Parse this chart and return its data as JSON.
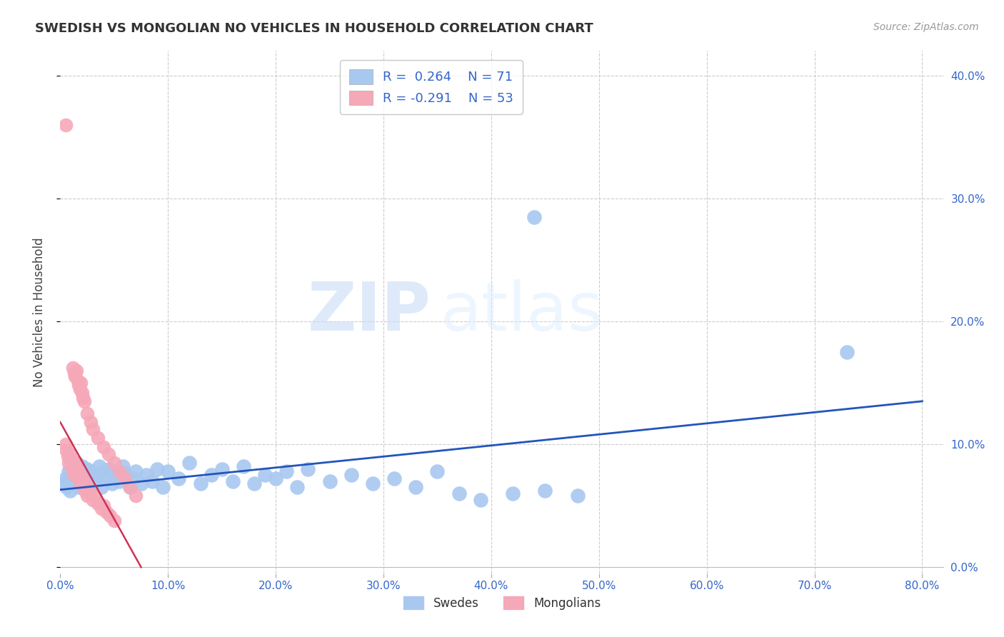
{
  "title": "SWEDISH VS MONGOLIAN NO VEHICLES IN HOUSEHOLD CORRELATION CHART",
  "source": "Source: ZipAtlas.com",
  "ylabel": "No Vehicles in Household",
  "xlim": [
    0.0,
    0.82
  ],
  "ylim": [
    -0.005,
    0.42
  ],
  "xticks": [
    0.0,
    0.1,
    0.2,
    0.3,
    0.4,
    0.5,
    0.6,
    0.7,
    0.8
  ],
  "xticklabels": [
    "0.0%",
    "10.0%",
    "20.0%",
    "30.0%",
    "40.0%",
    "50.0%",
    "60.0%",
    "70.0%",
    "80.0%"
  ],
  "yticks": [
    0.0,
    0.1,
    0.2,
    0.3,
    0.4
  ],
  "yticklabels_right": [
    "0.0%",
    "10.0%",
    "20.0%",
    "30.0%",
    "40.0%"
  ],
  "swedish_color": "#a8c8f0",
  "mongolian_color": "#f5a8b8",
  "swedish_line_color": "#2255bb",
  "mongolian_line_color": "#cc3355",
  "watermark_zip": "ZIP",
  "watermark_atlas": "atlas",
  "background_color": "#ffffff",
  "grid_color": "#cccccc",
  "swedish_x": [
    0.003,
    0.005,
    0.006,
    0.008,
    0.009,
    0.01,
    0.011,
    0.012,
    0.013,
    0.014,
    0.015,
    0.016,
    0.017,
    0.018,
    0.019,
    0.02,
    0.021,
    0.022,
    0.023,
    0.024,
    0.025,
    0.026,
    0.028,
    0.03,
    0.032,
    0.034,
    0.036,
    0.038,
    0.04,
    0.042,
    0.045,
    0.048,
    0.05,
    0.055,
    0.058,
    0.06,
    0.065,
    0.068,
    0.07,
    0.075,
    0.08,
    0.085,
    0.09,
    0.095,
    0.1,
    0.11,
    0.12,
    0.13,
    0.14,
    0.15,
    0.16,
    0.17,
    0.18,
    0.19,
    0.2,
    0.21,
    0.22,
    0.23,
    0.25,
    0.27,
    0.29,
    0.31,
    0.33,
    0.35,
    0.37,
    0.39,
    0.42,
    0.45,
    0.48,
    0.44,
    0.73
  ],
  "swedish_y": [
    0.068,
    0.072,
    0.065,
    0.078,
    0.062,
    0.08,
    0.075,
    0.07,
    0.068,
    0.072,
    0.085,
    0.078,
    0.065,
    0.07,
    0.075,
    0.082,
    0.068,
    0.074,
    0.07,
    0.076,
    0.08,
    0.072,
    0.078,
    0.068,
    0.075,
    0.07,
    0.082,
    0.065,
    0.078,
    0.072,
    0.08,
    0.068,
    0.075,
    0.07,
    0.082,
    0.076,
    0.065,
    0.072,
    0.078,
    0.068,
    0.075,
    0.07,
    0.08,
    0.065,
    0.078,
    0.072,
    0.085,
    0.068,
    0.075,
    0.08,
    0.07,
    0.082,
    0.068,
    0.075,
    0.072,
    0.078,
    0.065,
    0.08,
    0.07,
    0.075,
    0.068,
    0.072,
    0.065,
    0.078,
    0.06,
    0.055,
    0.06,
    0.062,
    0.058,
    0.285,
    0.175
  ],
  "mongolian_x": [
    0.005,
    0.006,
    0.007,
    0.008,
    0.009,
    0.01,
    0.011,
    0.012,
    0.013,
    0.014,
    0.015,
    0.016,
    0.017,
    0.018,
    0.019,
    0.02,
    0.021,
    0.022,
    0.023,
    0.024,
    0.025,
    0.027,
    0.03,
    0.032,
    0.035,
    0.038,
    0.04,
    0.043,
    0.046,
    0.05,
    0.012,
    0.013,
    0.014,
    0.015,
    0.016,
    0.017,
    0.018,
    0.019,
    0.02,
    0.021,
    0.022,
    0.025,
    0.028,
    0.03,
    0.035,
    0.04,
    0.045,
    0.05,
    0.055,
    0.06,
    0.065,
    0.07,
    0.005
  ],
  "mongolian_y": [
    0.1,
    0.095,
    0.09,
    0.085,
    0.092,
    0.088,
    0.082,
    0.078,
    0.075,
    0.08,
    0.085,
    0.078,
    0.072,
    0.075,
    0.068,
    0.072,
    0.065,
    0.068,
    0.062,
    0.065,
    0.058,
    0.06,
    0.055,
    0.058,
    0.052,
    0.048,
    0.05,
    0.045,
    0.042,
    0.038,
    0.162,
    0.158,
    0.155,
    0.16,
    0.152,
    0.148,
    0.145,
    0.15,
    0.142,
    0.138,
    0.135,
    0.125,
    0.118,
    0.112,
    0.105,
    0.098,
    0.092,
    0.085,
    0.078,
    0.072,
    0.065,
    0.058,
    0.36
  ],
  "sw_line_x0": 0.0,
  "sw_line_x1": 0.8,
  "sw_line_y0": 0.063,
  "sw_line_y1": 0.135,
  "mg_line_x0": 0.0,
  "mg_line_x1": 0.075,
  "mg_line_y0": 0.118,
  "mg_line_y1": 0.0,
  "legend1_label": "R =  0.264    N = 71",
  "legend2_label": "R = -0.291    N = 53",
  "bottom_label1": "Swedes",
  "bottom_label2": "Mongolians"
}
